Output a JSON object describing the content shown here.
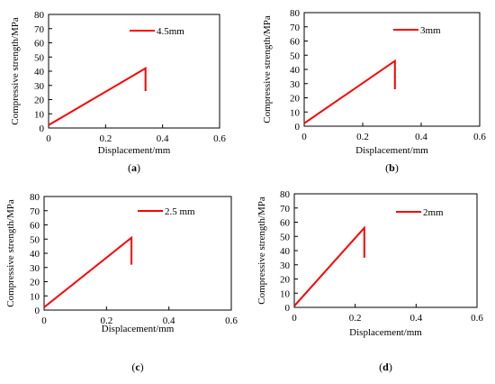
{
  "chart_data": [
    {
      "type": "line",
      "panel_label": "(a)",
      "panel_letter": "a",
      "xlabel": "Displacement/mm",
      "ylabel": "Compressive strength/MPa",
      "xlim": [
        0,
        0.6
      ],
      "ylim": [
        0,
        80
      ],
      "xticks": [
        "0",
        "0.2",
        "0.4",
        "0.6"
      ],
      "yticks": [
        "0",
        "10",
        "20",
        "30",
        "40",
        "50",
        "60",
        "70",
        "80"
      ],
      "grid": false,
      "legend_position": "top-right",
      "color": "#ff0000",
      "series": [
        {
          "name": "4.5mm",
          "x": [
            0,
            0.34,
            0.34
          ],
          "y": [
            2,
            42,
            26
          ]
        }
      ]
    },
    {
      "type": "line",
      "panel_label": "(b)",
      "panel_letter": "b",
      "xlabel": "Displacement/mm",
      "ylabel": "Compressive strength/MPa",
      "xlim": [
        0,
        0.6
      ],
      "ylim": [
        0,
        80
      ],
      "xticks": [
        "0",
        "0.2",
        "0.4",
        "0.6"
      ],
      "yticks": [
        "0",
        "10",
        "20",
        "30",
        "40",
        "50",
        "60",
        "70",
        "80"
      ],
      "grid": false,
      "legend_position": "top-right",
      "color": "#ff0000",
      "series": [
        {
          "name": "3mm",
          "x": [
            0,
            0.31,
            0.31
          ],
          "y": [
            2,
            46,
            26
          ]
        }
      ]
    },
    {
      "type": "line",
      "panel_label": "(c)",
      "panel_letter": "c",
      "xlabel": "Displacement/mm",
      "ylabel": "Compressive strength/MPa",
      "xlim": [
        0,
        0.6
      ],
      "ylim": [
        0,
        80
      ],
      "xticks": [
        "0",
        "0.2",
        "0.4",
        "0.6"
      ],
      "yticks": [
        "0",
        "10",
        "20",
        "30",
        "40",
        "50",
        "60",
        "70",
        "80"
      ],
      "grid": false,
      "legend_position": "top-right",
      "color": "#ff0000",
      "series": [
        {
          "name": "2.5 mm",
          "x": [
            0,
            0.28,
            0.28
          ],
          "y": [
            2,
            51,
            32
          ]
        }
      ]
    },
    {
      "type": "line",
      "panel_label": "(d)",
      "panel_letter": "d",
      "xlabel": "Displacement/mm",
      "ylabel": "Compressive strength/MPa",
      "xlim": [
        0,
        0.6
      ],
      "ylim": [
        0,
        80
      ],
      "xticks": [
        "0",
        "0.2",
        "0.4",
        "0.6"
      ],
      "yticks": [
        "0",
        "10",
        "20",
        "30",
        "40",
        "50",
        "60",
        "70",
        "80"
      ],
      "grid": false,
      "legend_position": "top-right",
      "color": "#ff0000",
      "series": [
        {
          "name": "2mm",
          "x": [
            0,
            0.23,
            0.23
          ],
          "y": [
            1,
            56,
            35
          ]
        }
      ]
    }
  ]
}
